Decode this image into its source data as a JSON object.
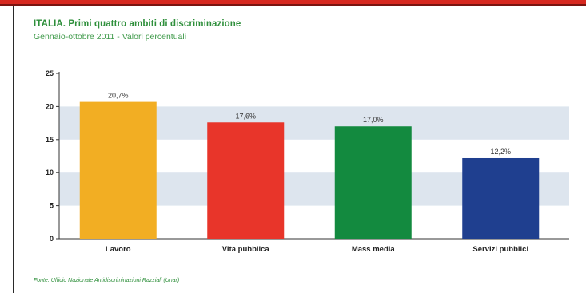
{
  "header": {
    "title": "ITALIA. Primi quattro ambiti di discriminazione",
    "subtitle": "Gennaio-ottobre 2011 - Valori percentuali"
  },
  "footer": {
    "source": "Fonte: Ufficio Nazionale Antidiscriminazioni Razziali (Unar)"
  },
  "colors": {
    "accent_stripe": "#d7281f",
    "title_green": "#2e8f3b",
    "band": "#dde5ee"
  },
  "chart_data": {
    "type": "bar",
    "title": "ITALIA. Primi quattro ambiti di discriminazione",
    "subtitle": "Gennaio-ottobre 2011 - Valori percentuali",
    "categories": [
      "Lavoro",
      "Vita pubblica",
      "Mass media",
      "Servizi pubblici"
    ],
    "values": [
      20.7,
      17.6,
      17.0,
      12.2
    ],
    "value_labels": [
      "20,7%",
      "17,6%",
      "17,0%",
      "12,2%"
    ],
    "bar_colors": [
      "#f2ae23",
      "#e8352a",
      "#138a3f",
      "#1f3f8f"
    ],
    "yticks": [
      0,
      5,
      10,
      15,
      20,
      25
    ],
    "ylim": [
      0,
      25
    ],
    "xlabel": "",
    "ylabel": "",
    "grid": "alternating horizontal bands",
    "legend": "none"
  }
}
